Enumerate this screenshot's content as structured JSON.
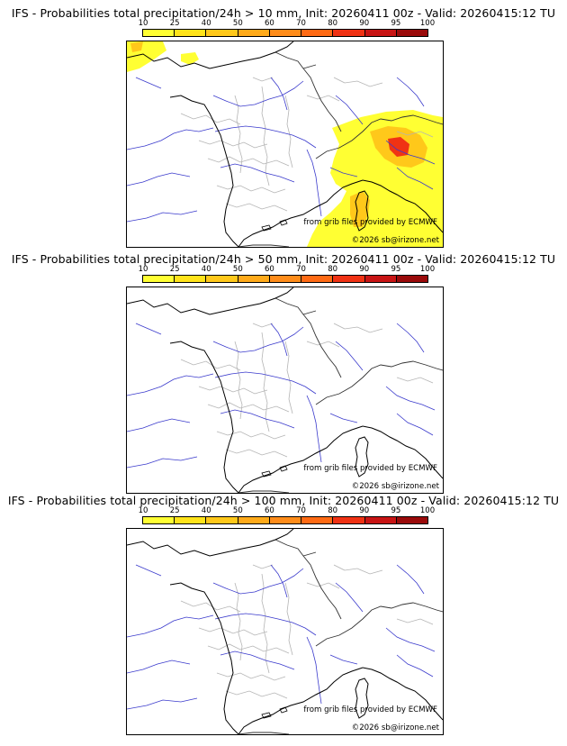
{
  "panels": [
    {
      "title": "IFS - Probabilities total precipitation/24h > 10 mm, Init: 20260411 00z - Valid: 20260415:12 TU",
      "has_precip": true
    },
    {
      "title": "IFS - Probabilities total precipitation/24h > 50 mm, Init: 20260411 00z - Valid: 20260415:12 TU",
      "has_precip": false
    },
    {
      "title": "IFS - Probabilities total precipitation/24h > 100 mm, Init: 20260411 00z - Valid: 20260415:12 TU",
      "has_precip": false
    }
  ],
  "scale": {
    "ticks": [
      "10",
      "25",
      "40",
      "50",
      "60",
      "70",
      "80",
      "90",
      "95",
      "100"
    ],
    "colors": [
      "#ffff33",
      "#ffe31a",
      "#ffc81a",
      "#ffaa1a",
      "#ff8c1a",
      "#ff6a14",
      "#f03214",
      "#c81414",
      "#9a0a0a"
    ]
  },
  "credits": {
    "source": "from grib files provided by ECMWF",
    "copyright": "©2026 sb@irizone.net"
  },
  "colors": {
    "coast": "#000000",
    "rivers": "#3a3acc",
    "borders": "#b4b4b4",
    "precip_low": "#ffff33",
    "precip_mid": "#ffc81a",
    "precip_high": "#f03214"
  }
}
